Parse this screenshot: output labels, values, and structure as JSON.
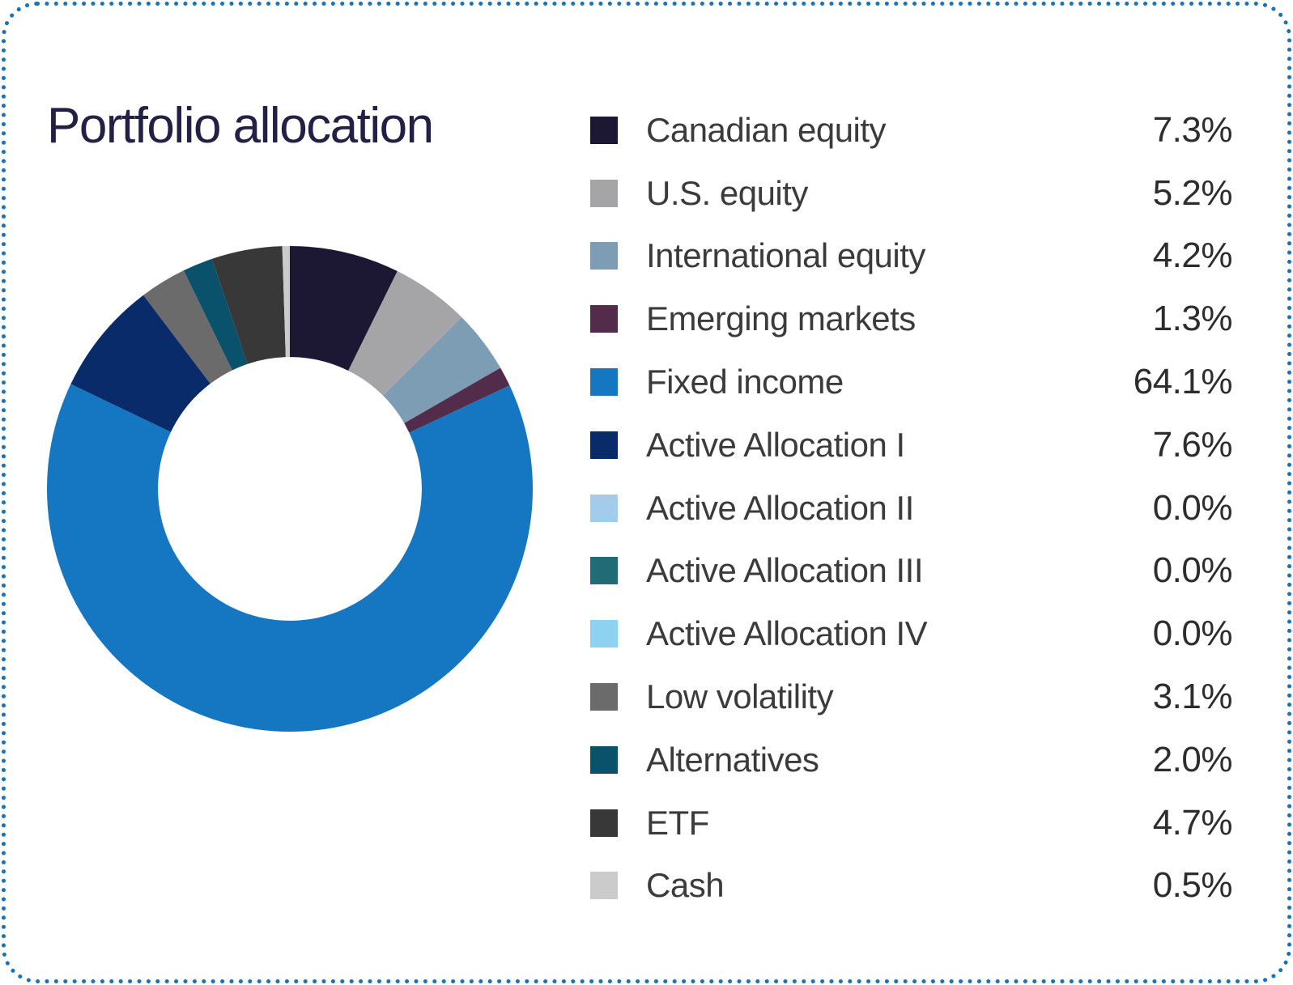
{
  "card": {
    "background": "#ffffff",
    "border_style": "dotted",
    "border_color": "#1a73b8",
    "corner_radius": 42
  },
  "title": "Portfolio allocation",
  "title_color": "#232046",
  "text_colors": {
    "legend_label": "#3b3b3b",
    "legend_value": "#2d2d2d"
  },
  "chart_data": {
    "type": "pie",
    "subtype": "donut",
    "title": "Portfolio allocation",
    "legend_position": "right",
    "start_angle_deg": 0,
    "direction": "clockwise",
    "inner_radius_ratio": 0.543,
    "series": [
      {
        "label": "Canadian equity",
        "value": 7.3,
        "display": "7.3%",
        "color": "#1c1834"
      },
      {
        "label": "U.S. equity",
        "value": 5.2,
        "display": "5.2%",
        "color": "#a5a4a6"
      },
      {
        "label": "International equity",
        "value": 4.2,
        "display": "4.2%",
        "color": "#7c9db4"
      },
      {
        "label": "Emerging markets",
        "value": 1.3,
        "display": "1.3%",
        "color": "#542c4b"
      },
      {
        "label": "Fixed income",
        "value": 64.1,
        "display": "64.1%",
        "color": "#1577c2"
      },
      {
        "label": "Active Allocation I",
        "value": 7.6,
        "display": "7.6%",
        "color": "#0a2b69"
      },
      {
        "label": "Active Allocation II",
        "value": 0.0,
        "display": "0.0%",
        "color": "#a3cbec"
      },
      {
        "label": "Active Allocation III",
        "value": 0.0,
        "display": "0.0%",
        "color": "#216b77"
      },
      {
        "label": "Active Allocation IV",
        "value": 0.0,
        "display": "0.0%",
        "color": "#8ed1f0"
      },
      {
        "label": "Low volatility",
        "value": 3.1,
        "display": "3.1%",
        "color": "#6b6b6b"
      },
      {
        "label": "Alternatives",
        "value": 2.0,
        "display": "2.0%",
        "color": "#0a526b"
      },
      {
        "label": "ETF",
        "value": 4.7,
        "display": "4.7%",
        "color": "#383838"
      },
      {
        "label": "Cash",
        "value": 0.5,
        "display": "0.5%",
        "color": "#cbcbcb"
      }
    ]
  }
}
